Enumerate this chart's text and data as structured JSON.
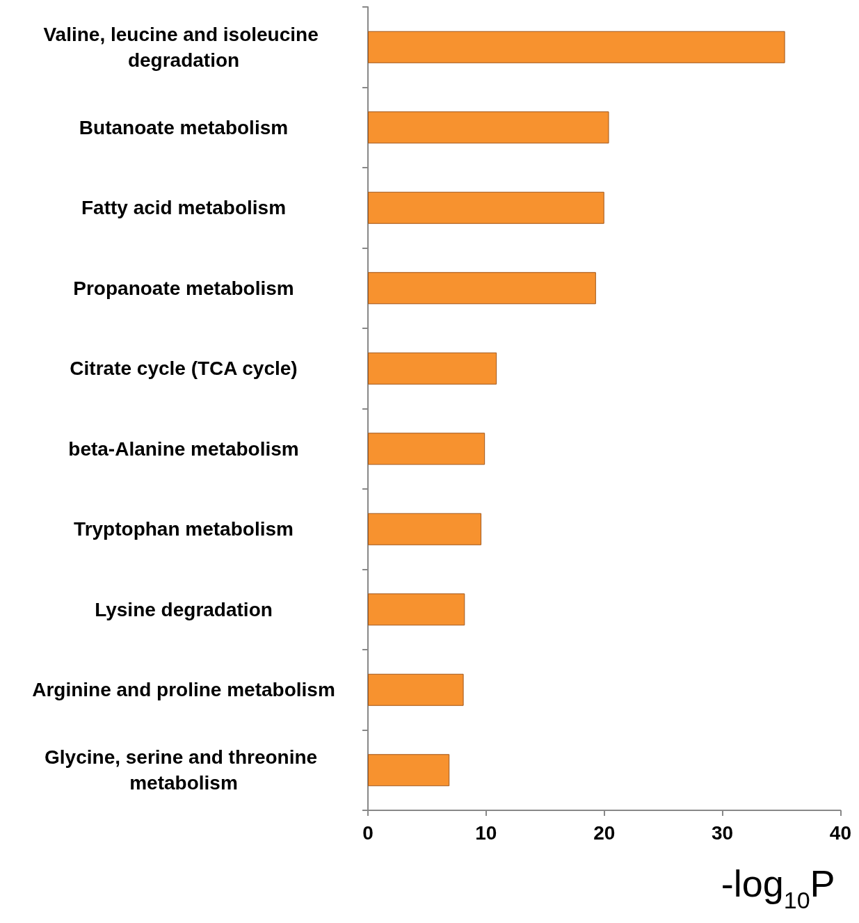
{
  "chart_data": {
    "type": "bar",
    "orientation": "horizontal",
    "xlabel": "-log$_{10}$P",
    "categories": [
      "Valine, leucine and isoleucine degradation",
      "Butanoate metabolism",
      "Fatty acid metabolism",
      "Propanoate metabolism",
      "Citrate cycle (TCA cycle)",
      "beta-Alanine metabolism",
      "Tryptophan metabolism",
      "Lysine degradation",
      "Arginine and proline metabolism",
      "Glycine, serine and threonine metabolism"
    ],
    "values": [
      35.3,
      20.4,
      20.0,
      19.3,
      10.9,
      9.9,
      9.6,
      8.2,
      8.1,
      6.9
    ],
    "color": "#f7922f",
    "xlim": [
      0,
      40
    ],
    "xticks": [
      0,
      10,
      20,
      30,
      40
    ],
    "grid": false
  }
}
